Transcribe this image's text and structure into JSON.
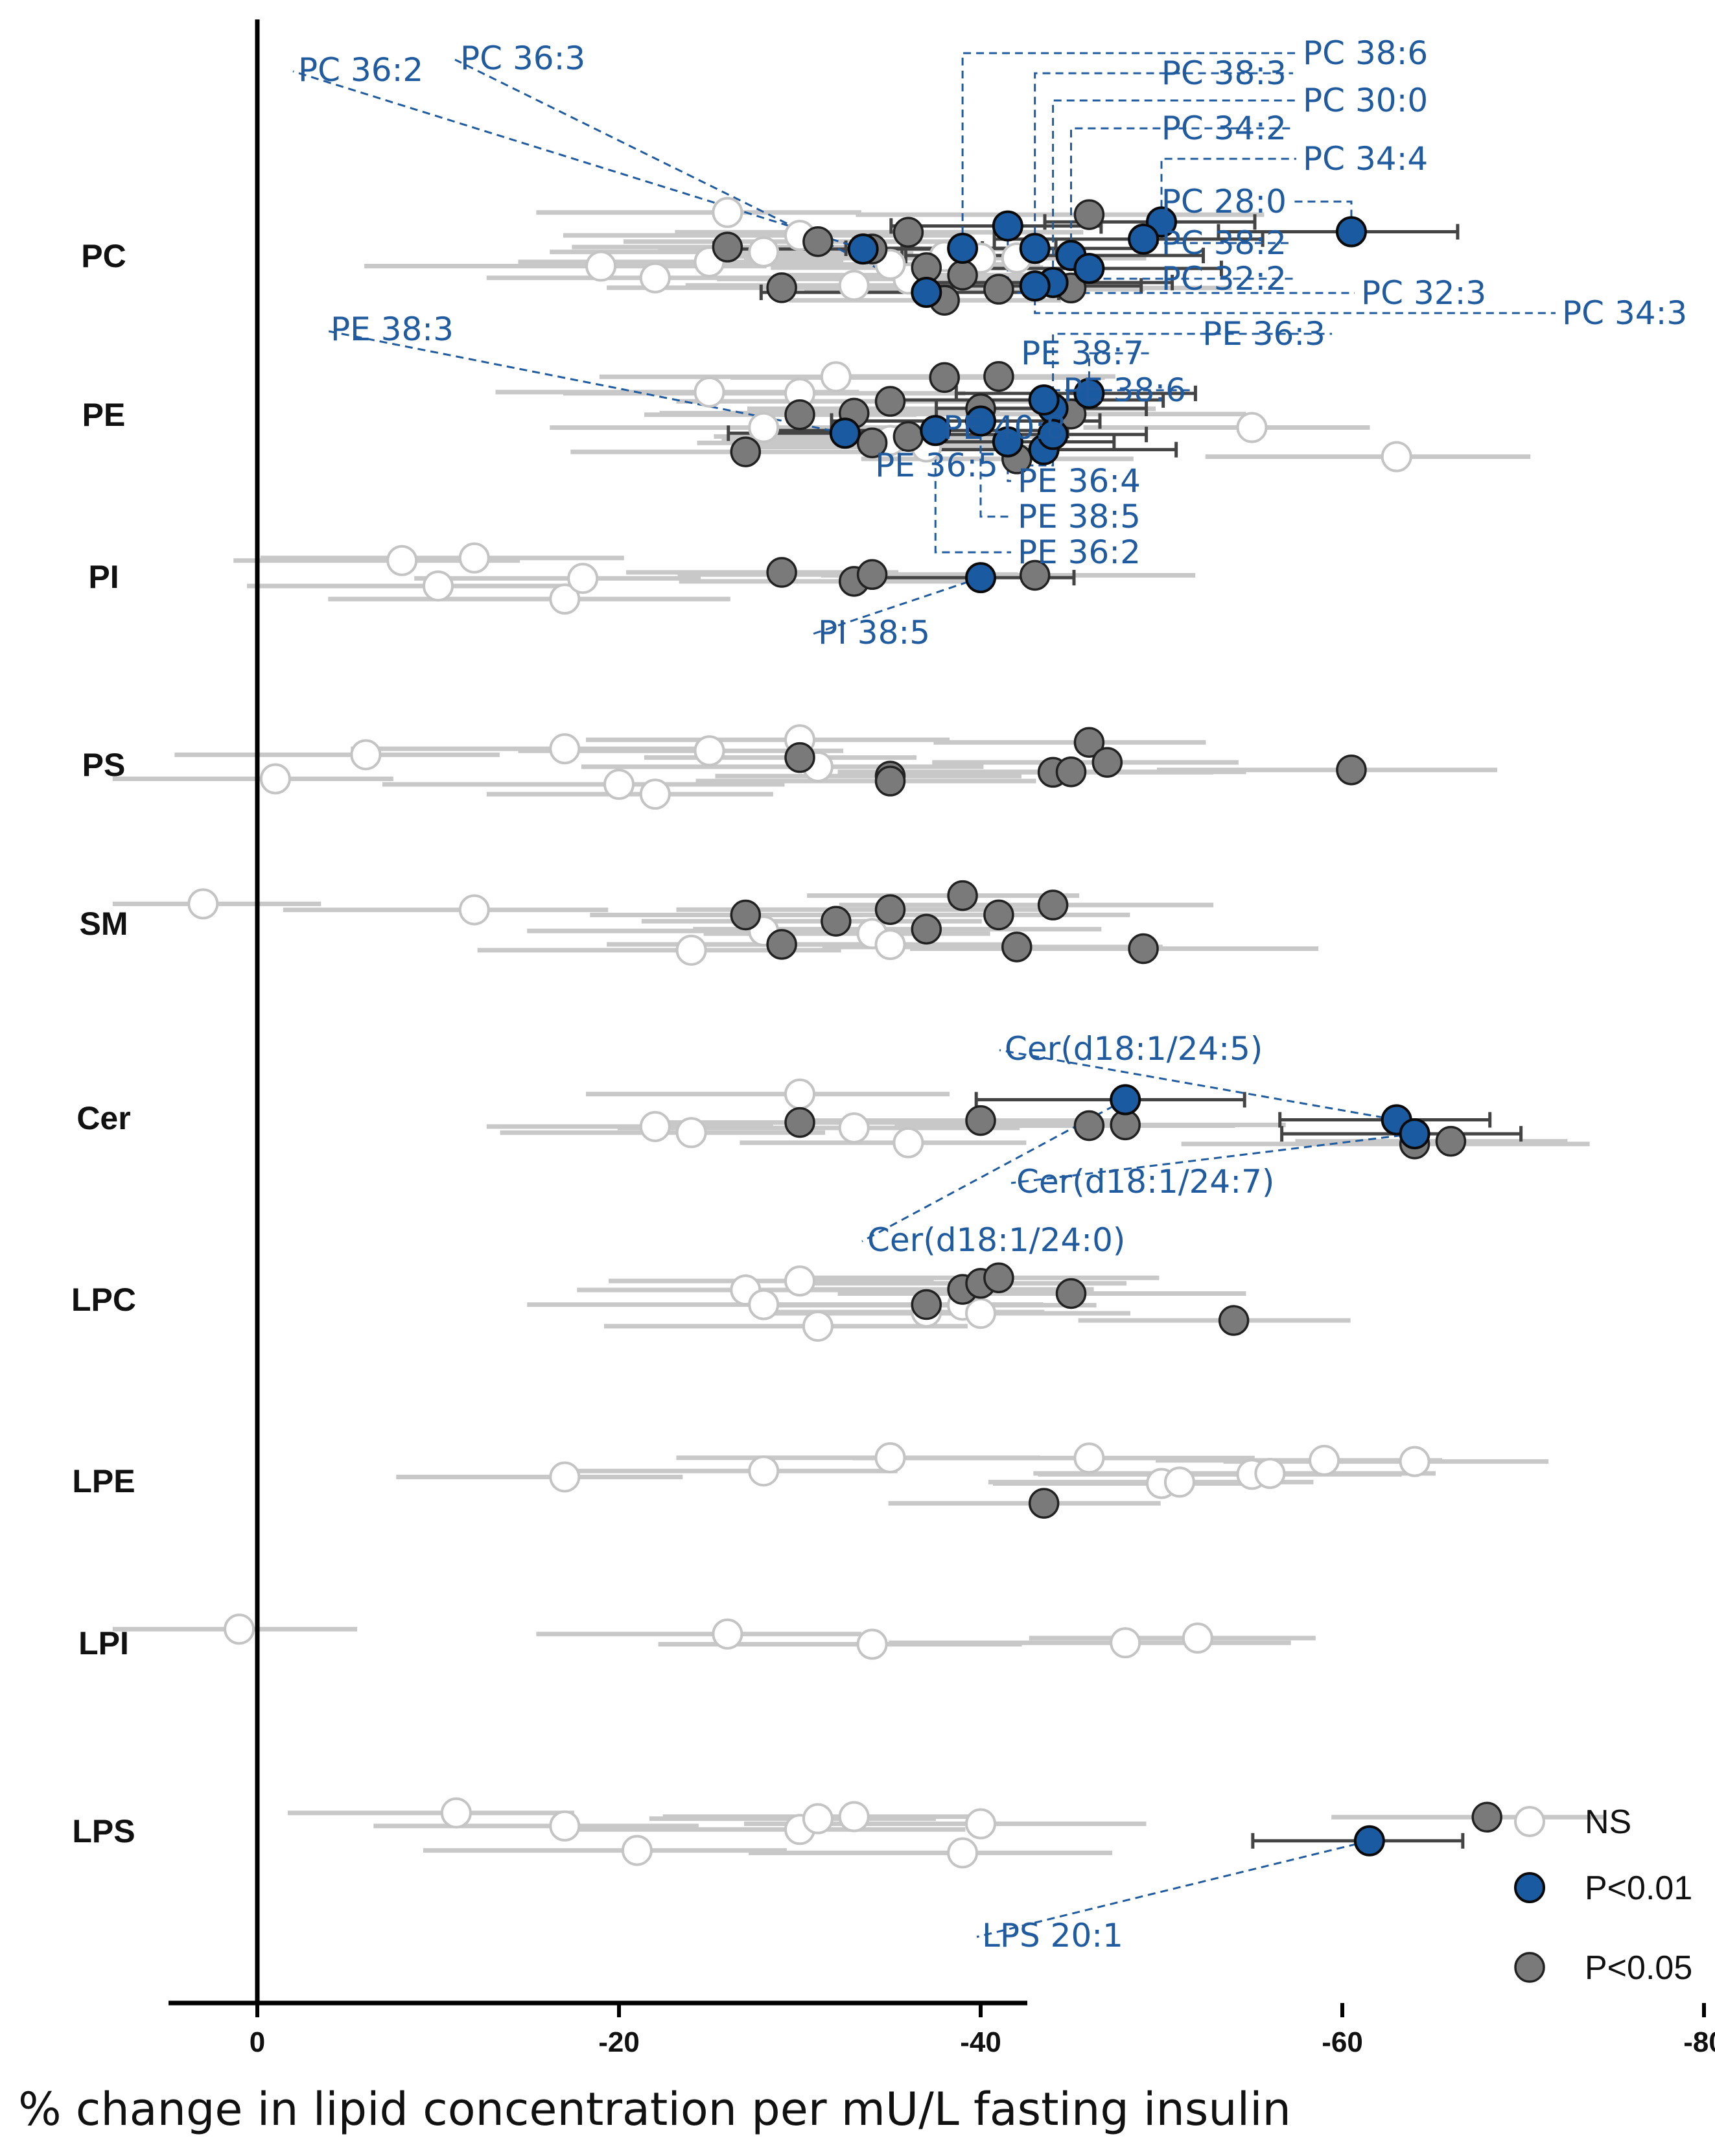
{
  "chart_data": {
    "type": "scatter",
    "orientation": "horizontal",
    "xlabel": "% change in lipid concentration per mU/L fasting insulin",
    "xlim": [
      10,
      -85
    ],
    "ticks": [
      0,
      -20,
      -40,
      -60,
      -80
    ],
    "tick_labels": [
      "0",
      "-20",
      "-40",
      "-60",
      "-80"
    ],
    "legend": [
      {
        "key": "ns",
        "label": "NS"
      },
      {
        "key": "p01",
        "label": "P<0.01"
      },
      {
        "key": "p05",
        "label": "P<0.05"
      }
    ],
    "colors": {
      "p01_fill": "#1a5aa0",
      "p05_fill": "#7a7a7a",
      "ns_stroke": "#c4c4c4",
      "annotation": "#1f5b9e",
      "ci_light": "#c8c8c8",
      "ci_dark": "#444444"
    },
    "categories": [
      {
        "name": "PC",
        "ns": [
          -22,
          -25,
          -28,
          -30,
          -33,
          -36,
          -38,
          -40,
          -42,
          -26,
          -35,
          -19
        ],
        "p05": [
          -26,
          -29,
          -31,
          -34,
          -36,
          -38,
          -39,
          -41,
          -45,
          -46,
          -37
        ],
        "p01": [
          {
            "label": "PC 38:6",
            "value": -39.0
          },
          {
            "label": "PC 38:3",
            "value": -43.0
          },
          {
            "label": "PC 30:0",
            "value": -44.0
          },
          {
            "label": "PC 34:2",
            "value": -45.0
          },
          {
            "label": "PC 34:4",
            "value": -50.0
          },
          {
            "label": "PC 28:0",
            "value": -60.5
          },
          {
            "label": "PC 38:2",
            "value": -49.0
          },
          {
            "label": "PC 32:2",
            "value": -46.0
          },
          {
            "label": "PC 32:3",
            "value": -41.5
          },
          {
            "label": "PC 34:3",
            "value": -43.0
          },
          {
            "label": "PC 36:2",
            "value": -33.5
          },
          {
            "label": "PC 36:3",
            "value": -37.0
          }
        ]
      },
      {
        "name": "PE",
        "ns": [
          -55,
          -63,
          -25,
          -30,
          -35,
          -37,
          -28,
          -32
        ],
        "p05": [
          -30,
          -34,
          -36,
          -38,
          -40,
          -42,
          -27,
          -33,
          -35,
          -45,
          -41
        ],
        "p01": [
          {
            "label": "PE 36:3",
            "value": -44.0
          },
          {
            "label": "PE 38:7",
            "value": -46.0
          },
          {
            "label": "PE 38:6",
            "value": -43.5
          },
          {
            "label": "PE 40:8",
            "value": -43.5
          },
          {
            "label": "PE 36:5",
            "value": -44.0
          },
          {
            "label": "PE 36:4",
            "value": -41.5
          },
          {
            "label": "PE 38:5",
            "value": -40.0
          },
          {
            "label": "PE 36:2",
            "value": -37.5
          },
          {
            "label": "PE 38:3",
            "value": -32.5
          }
        ]
      },
      {
        "name": "PI",
        "ns": [
          -8,
          -10,
          -12,
          -17,
          -18
        ],
        "p05": [
          -29,
          -33,
          -34,
          -43
        ],
        "p01": [
          {
            "label": "PI 38:5",
            "value": -40.0
          }
        ]
      },
      {
        "name": "PS",
        "ns": [
          -1,
          -6,
          -17,
          -20,
          -22,
          -25,
          -30,
          -31
        ],
        "p05": [
          -30,
          -35,
          -35,
          -44,
          -45,
          -46,
          -47,
          -60.5
        ],
        "p01": []
      },
      {
        "name": "SM",
        "ns": [
          3,
          -12,
          -24,
          -28,
          -34,
          -35
        ],
        "p05": [
          -27,
          -29,
          -32,
          -35,
          -37,
          -39,
          -41,
          -42,
          -44,
          -49
        ],
        "p01": []
      },
      {
        "name": "Cer",
        "ns": [
          -22,
          -24,
          -30,
          -33,
          -36
        ],
        "p05": [
          -30,
          -40,
          -46,
          -48,
          -64,
          -66
        ],
        "p01": [
          {
            "label": "Cer(d18:1/24:5)",
            "value": -63.0
          },
          {
            "label": "Cer(d18:1/24:7)",
            "value": -64.0
          },
          {
            "label": "Cer(d18:1/24:0)",
            "value": -48.0
          }
        ]
      },
      {
        "name": "LPC",
        "ns": [
          -27,
          -30,
          -31,
          -28,
          -37,
          -39,
          -40
        ],
        "p05": [
          -37,
          -39,
          -40,
          -41,
          -45,
          -54
        ],
        "p01": []
      },
      {
        "name": "LPE",
        "ns": [
          -17,
          -28,
          -35,
          -46,
          -50,
          -51,
          -55,
          -56,
          -59,
          -64
        ],
        "p05": [
          -43.5
        ],
        "p01": []
      },
      {
        "name": "LPI",
        "ns": [
          1,
          -26,
          -34,
          -48,
          -52
        ],
        "p05": [],
        "p01": []
      },
      {
        "name": "LPS",
        "ns": [
          -11,
          -17,
          -21,
          -30,
          -31,
          -33,
          -39,
          -40
        ],
        "p05": [
          -68
        ],
        "p01": [
          {
            "label": "LPS 20:1",
            "value": -61.5
          }
        ]
      }
    ]
  }
}
